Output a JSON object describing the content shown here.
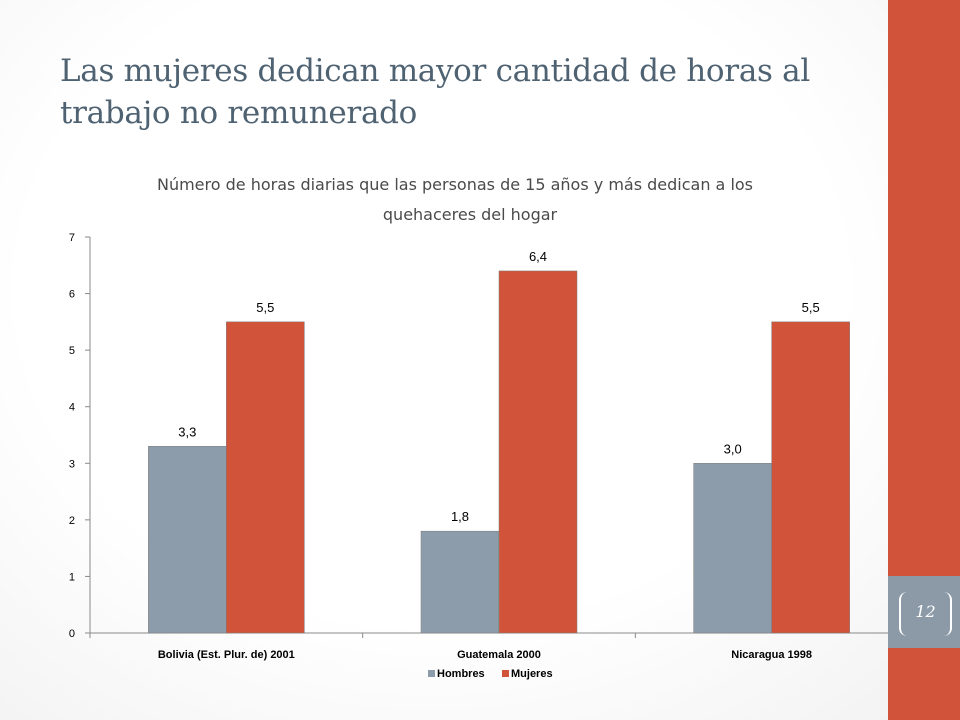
{
  "slide": {
    "title_line1": "Las mujeres dedican mayor cantidad de horas al",
    "title_line2": "trabajo no remunerado",
    "page_number": "12"
  },
  "colors": {
    "accent_bar": "#d1543a",
    "page_tab": "#8c9aa8",
    "hombres": "#8c9cab",
    "mujeres": "#d1543a",
    "title_text": "#4f6272"
  },
  "chart_data": {
    "type": "bar",
    "title_line1": "Número de horas diarias que las personas de 15 años y más dedican a los",
    "title_line2": "quehaceres del  hogar",
    "categories": [
      "Bolivia (Est. Plur. de) 2001",
      "Guatemala 2000",
      "Nicaragua 1998"
    ],
    "series": [
      {
        "name": "Hombres",
        "values": [
          3.3,
          1.8,
          3.0
        ],
        "labels": [
          "3,3",
          "1,8",
          "3,0"
        ]
      },
      {
        "name": "Mujeres",
        "values": [
          5.5,
          6.4,
          5.5
        ],
        "labels": [
          "5,5",
          "6,4",
          "5,5"
        ]
      }
    ],
    "ylim": [
      0,
      7
    ],
    "yticks": [
      0,
      1,
      2,
      3,
      4,
      5,
      6,
      7
    ],
    "legend_position": "bottom",
    "grid": false
  }
}
